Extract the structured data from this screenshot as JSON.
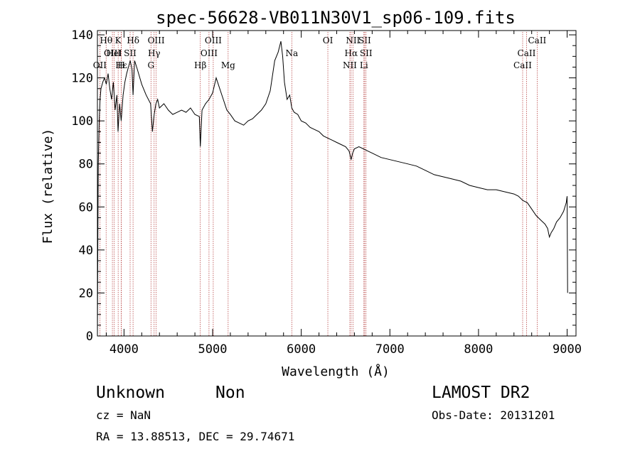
{
  "chart_data": {
    "type": "line",
    "title": "spec-56628-VB011N30V1_sp06-109.fits",
    "xlabel": "Wavelength (Å)",
    "ylabel": "Flux (relative)",
    "xlim": [
      3700,
      9100
    ],
    "ylim": [
      0,
      142
    ],
    "x_ticks": [
      4000,
      5000,
      6000,
      7000,
      8000,
      9000
    ],
    "x_tick_labels": [
      "4000",
      "5000",
      "6000",
      "7000",
      "8000",
      "9000"
    ],
    "y_ticks": [
      0,
      20,
      40,
      60,
      80,
      100,
      120,
      140
    ],
    "y_tick_labels": [
      "0",
      "20",
      "40",
      "60",
      "80",
      "100",
      "120",
      "140"
    ],
    "grid": false,
    "series": [
      {
        "x": [
          3700,
          3705,
          3710,
          3720,
          3730,
          3740,
          3760,
          3780,
          3800,
          3820,
          3840,
          3860,
          3880,
          3900,
          3920,
          3933,
          3950,
          3968,
          3990,
          4010,
          4030,
          4050,
          4070,
          4090,
          4102,
          4120,
          4150,
          4200,
          4250,
          4300,
          4320,
          4340,
          4360,
          4380,
          4400,
          4450,
          4500,
          4550,
          4600,
          4650,
          4700,
          4750,
          4800,
          4850,
          4861,
          4880,
          4920,
          4960,
          5000,
          5040,
          5080,
          5120,
          5160,
          5200,
          5250,
          5300,
          5350,
          5400,
          5450,
          5500,
          5550,
          5600,
          5650,
          5700,
          5740,
          5770,
          5790,
          5810,
          5840,
          5870,
          5893,
          5920,
          5960,
          6000,
          6050,
          6100,
          6150,
          6200,
          6250,
          6300,
          6350,
          6400,
          6450,
          6500,
          6540,
          6563,
          6580,
          6600,
          6650,
          6700,
          6750,
          6800,
          6900,
          7000,
          7100,
          7200,
          7300,
          7400,
          7500,
          7600,
          7700,
          7800,
          7900,
          8000,
          8100,
          8200,
          8300,
          8400,
          8450,
          8500,
          8550,
          8600,
          8650,
          8700,
          8750,
          8780,
          8800,
          8820,
          8850,
          8880,
          8920,
          8960,
          8990,
          9000,
          9005
        ],
        "y": [
          0,
          45,
          80,
          100,
          110,
          115,
          118,
          120,
          117,
          122,
          115,
          110,
          118,
          105,
          112,
          95,
          108,
          100,
          112,
          118,
          122,
          125,
          128,
          124,
          112,
          128,
          124,
          117,
          112,
          108,
          95,
          103,
          108,
          110,
          106,
          108,
          105,
          103,
          104,
          105,
          104,
          106,
          103,
          102,
          88,
          105,
          108,
          110,
          113,
          120,
          115,
          110,
          105,
          103,
          100,
          99,
          98,
          100,
          101,
          103,
          105,
          108,
          114,
          128,
          132,
          137,
          130,
          118,
          110,
          112,
          106,
          104,
          103,
          100,
          99,
          97,
          96,
          95,
          93,
          92,
          91,
          90,
          89,
          88,
          86,
          82,
          85,
          87,
          88,
          87,
          86,
          85,
          83,
          82,
          81,
          80,
          79,
          77,
          75,
          74,
          73,
          72,
          70,
          69,
          68,
          68,
          67,
          66,
          65,
          63,
          62,
          59,
          56,
          54,
          52,
          50,
          46,
          48,
          50,
          53,
          55,
          58,
          62,
          65,
          20
        ]
      }
    ],
    "lines": [
      {
        "label": "OII",
        "x": 3727,
        "row": 3
      },
      {
        "label": "Hθ",
        "x": 3798,
        "row": 1
      },
      {
        "label": "OIII",
        "x": 3869,
        "row": 2
      },
      {
        "label": "K",
        "x": 3934,
        "row": 1
      },
      {
        "label": "HeI",
        "x": 3889,
        "row": 2
      },
      {
        "label": "H",
        "x": 3969,
        "row": 3
      },
      {
        "label": "Hε",
        "x": 3970,
        "row": 3
      },
      {
        "label": "SII",
        "x": 4069,
        "row": 2
      },
      {
        "label": "Hδ",
        "x": 4102,
        "row": 1
      },
      {
        "label": "OIII",
        "x": 4363,
        "row": 1
      },
      {
        "label": "Hγ",
        "x": 4340,
        "row": 2
      },
      {
        "label": "G",
        "x": 4304,
        "row": 3
      },
      {
        "label": "Hβ",
        "x": 4861,
        "row": 3
      },
      {
        "label": "OIII",
        "x": 5007,
        "row": 1
      },
      {
        "label": "OIII",
        "x": 4959,
        "row": 2
      },
      {
        "label": "Mg",
        "x": 5175,
        "row": 3
      },
      {
        "label": "Na",
        "x": 5893,
        "row": 2
      },
      {
        "label": "OI",
        "x": 6300,
        "row": 1
      },
      {
        "label": "NII",
        "x": 6583,
        "row": 1
      },
      {
        "label": "SII",
        "x": 6716,
        "row": 1
      },
      {
        "label": "Hα",
        "x": 6563,
        "row": 2
      },
      {
        "label": "SII",
        "x": 6731,
        "row": 2
      },
      {
        "label": "NII",
        "x": 6548,
        "row": 3
      },
      {
        "label": "Li",
        "x": 6707,
        "row": 3
      },
      {
        "label": "CaII",
        "x": 8662,
        "row": 1
      },
      {
        "label": "CaII",
        "x": 8542,
        "row": 2
      },
      {
        "label": "CaII",
        "x": 8498,
        "row": 3
      }
    ]
  },
  "footer": {
    "object_class": "Unknown",
    "subclass": "Non",
    "survey": "LAMOST DR2",
    "cz": "cz = NaN",
    "obs_date": "Obs-Date: 20131201",
    "coords": "RA =  13.88513, DEC =  29.74671"
  }
}
